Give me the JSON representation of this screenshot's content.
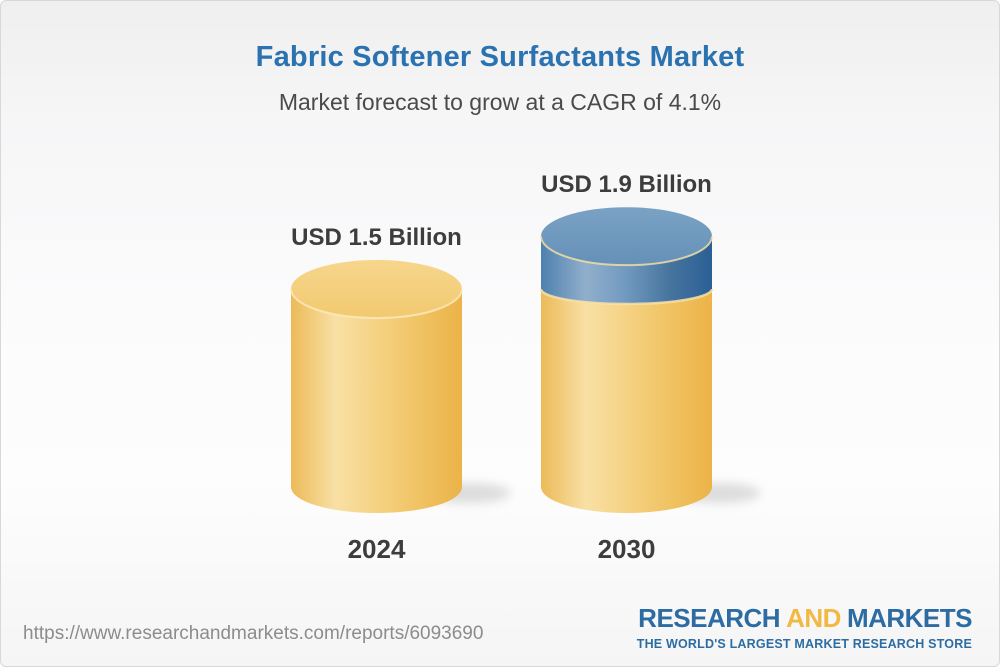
{
  "header": {
    "title": "Fabric Softener Surfactants Market",
    "subtitle": "Market forecast to grow at a CAGR of 4.1%"
  },
  "chart_data": {
    "type": "bar",
    "variant": "3d-cylinder",
    "title": "Fabric Softener Surfactants Market",
    "subtitle": "Market forecast to grow at a CAGR of 4.1%",
    "cagr_percent": 4.1,
    "unit": "USD Billion",
    "categories": [
      "2024",
      "2030"
    ],
    "values": [
      1.5,
      1.9
    ],
    "value_labels": [
      "USD 1.5 Billion",
      "USD 1.9 Billion"
    ],
    "bars": [
      {
        "category": "2024",
        "total": 1.5,
        "segments": [
          {
            "color_key": "gold",
            "value": 1.5
          }
        ]
      },
      {
        "category": "2030",
        "total": 1.9,
        "segments": [
          {
            "color_key": "gold",
            "value": 1.5
          },
          {
            "color_key": "blue",
            "value": 0.4
          }
        ]
      }
    ],
    "colors": {
      "gold": "#f2c567",
      "gold_dark": "#ecb348",
      "gold_cap": "#f4cd7a",
      "blue": "#4d7fad",
      "blue_dark": "#2b5f95",
      "blue_cap": "#6c97bd"
    },
    "legend": "none",
    "grid": "off"
  },
  "footer": {
    "url": "https://www.researchandmarkets.com/reports/6093690",
    "logo": {
      "part1": "RESEARCH",
      "part2": "AND",
      "part3": "MARKETS",
      "tagline": "THE WORLD'S LARGEST MARKET RESEARCH STORE",
      "blue": "#2d6ca3",
      "gold": "#f2b844"
    }
  }
}
